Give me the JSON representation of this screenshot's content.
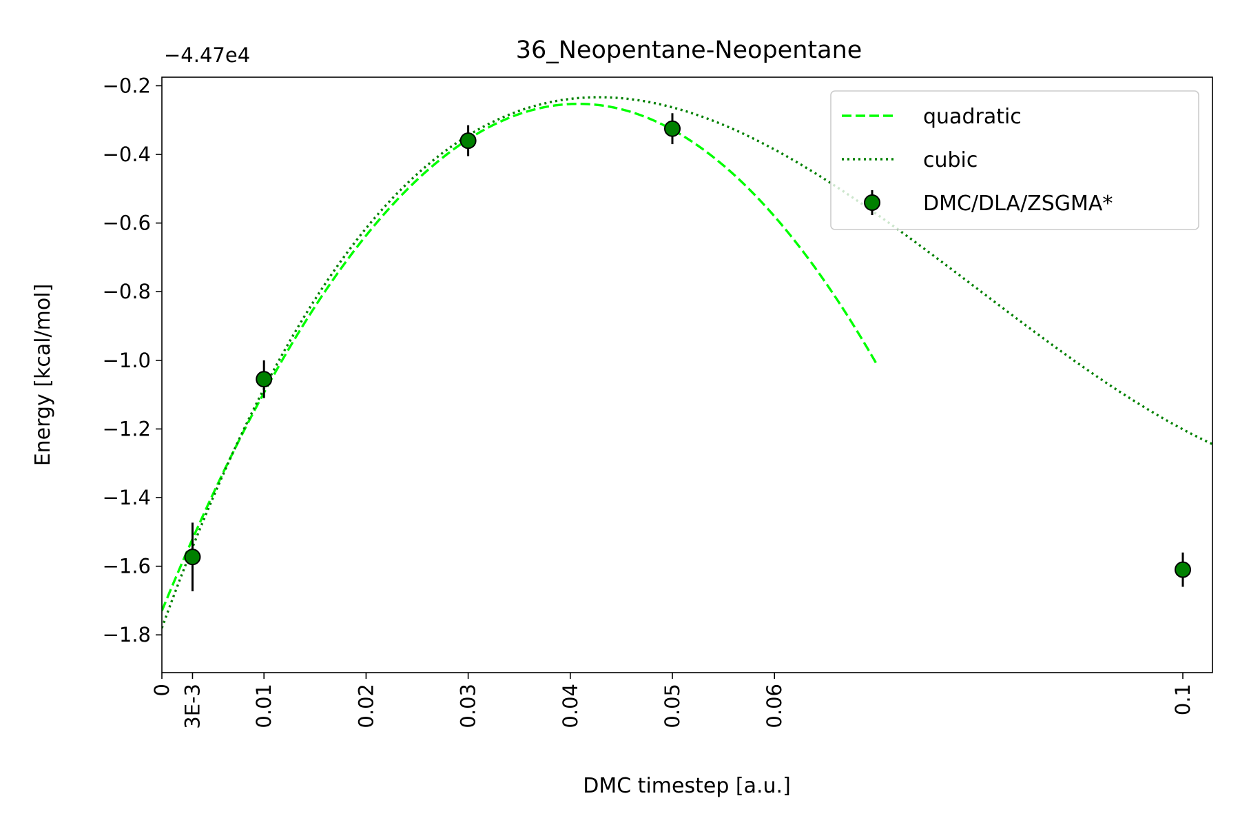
{
  "chart_data": {
    "type": "line",
    "title": "36_Neopentane-Neopentane",
    "xlabel": "DMC timestep [a.u.]",
    "ylabel": "Energy [kcal/mol]",
    "y_offset_label": "−4.47e4",
    "xlim": [
      0,
      0.1029
    ],
    "ylim": [
      -1.91,
      -0.175
    ],
    "x_ticks": [
      {
        "value": 0,
        "label": "0"
      },
      {
        "value": 0.003,
        "label": "3E-3"
      },
      {
        "value": 0.01,
        "label": "0.01"
      },
      {
        "value": 0.02,
        "label": "0.02"
      },
      {
        "value": 0.03,
        "label": "0.03"
      },
      {
        "value": 0.04,
        "label": "0.04"
      },
      {
        "value": 0.05,
        "label": "0.05"
      },
      {
        "value": 0.06,
        "label": "0.06"
      },
      {
        "value": 0.1,
        "label": "0.1"
      }
    ],
    "y_ticks": [
      {
        "value": -0.2,
        "label": "−0.2"
      },
      {
        "value": -0.4,
        "label": "−0.4"
      },
      {
        "value": -0.6,
        "label": "−0.6"
      },
      {
        "value": -0.8,
        "label": "−0.8"
      },
      {
        "value": -1.0,
        "label": "−1.0"
      },
      {
        "value": -1.2,
        "label": "−1.2"
      },
      {
        "value": -1.4,
        "label": "−1.4"
      },
      {
        "value": -1.6,
        "label": "−1.6"
      },
      {
        "value": -1.8,
        "label": "−1.8"
      }
    ],
    "grid": false,
    "legend_position": "top-right",
    "series": [
      {
        "name": "quadratic",
        "style": "dashed",
        "color": "#00ff00",
        "fit": "quadratic",
        "coefficients": [
          -1.73,
          72.44,
          -888.0
        ],
        "x_range": [
          0,
          0.07
        ]
      },
      {
        "name": "cubic",
        "style": "dotted",
        "color": "#008000",
        "fit": "cubic",
        "coefficients": [
          -1.78,
          82.32,
          -1313.8,
          5485.0
        ],
        "x_range": [
          0,
          0.1029
        ]
      },
      {
        "name": "DMC/DLA/ZSGMA*",
        "style": "errorbar",
        "color": "#008000",
        "x": [
          0.003,
          0.01,
          0.03,
          0.05,
          0.1
        ],
        "y": [
          -1.573,
          -1.055,
          -0.36,
          -0.325,
          -1.61
        ],
        "yerr": [
          0.1,
          0.055,
          0.045,
          0.045,
          0.05
        ]
      }
    ]
  }
}
